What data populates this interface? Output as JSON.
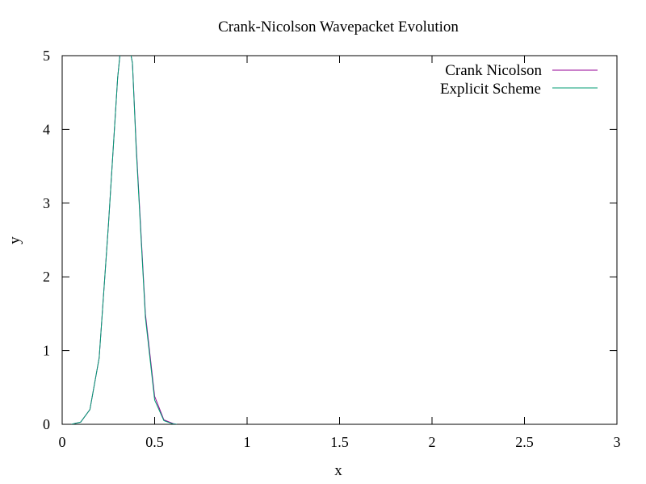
{
  "chart_data": {
    "type": "line",
    "title": "Crank-Nicolson Wavepacket Evolution",
    "xlabel": "x",
    "ylabel": "y",
    "xlim": [
      0,
      3
    ],
    "ylim": [
      0,
      5
    ],
    "xticks": [
      "0",
      "0.5",
      "1",
      "1.5",
      "2",
      "2.5",
      "3"
    ],
    "yticks": [
      "0",
      "1",
      "2",
      "3",
      "4",
      "5"
    ],
    "grid": false,
    "legend_position": "top-right",
    "series": [
      {
        "name": "Crank Nicolson",
        "color": "#940094",
        "x": [
          0.05,
          0.1,
          0.15,
          0.2,
          0.25,
          0.3,
          0.32,
          0.35,
          0.38,
          0.4,
          0.45,
          0.5,
          0.55,
          0.6,
          0.62
        ],
        "y": [
          0.0,
          0.03,
          0.2,
          0.9,
          2.7,
          4.7,
          5.2,
          5.3,
          4.9,
          3.8,
          1.5,
          0.38,
          0.06,
          0.01,
          0.0
        ]
      },
      {
        "name": "Explicit Scheme",
        "color": "#009e73",
        "x": [
          0.05,
          0.1,
          0.15,
          0.2,
          0.25,
          0.3,
          0.32,
          0.35,
          0.38,
          0.4,
          0.45,
          0.5,
          0.55,
          0.6,
          0.62
        ],
        "y": [
          0.0,
          0.03,
          0.2,
          0.9,
          2.7,
          4.7,
          5.2,
          5.3,
          4.9,
          3.75,
          1.45,
          0.33,
          0.05,
          0.005,
          0.0
        ]
      }
    ]
  }
}
